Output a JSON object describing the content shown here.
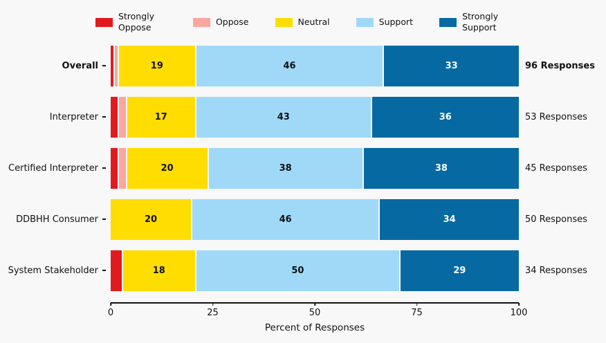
{
  "figure": {
    "background": "#f8f8f8"
  },
  "chart_data": {
    "type": "bar",
    "orientation": "horizontal",
    "stacked": true,
    "title": "",
    "xlabel": "Percent of Responses",
    "xlim": [
      0,
      100
    ],
    "xticks": [
      "0",
      "25",
      "50",
      "75",
      "100"
    ],
    "legend_position": "top",
    "value_label_min": 10,
    "legend": [
      {
        "label": "Strongly Oppose",
        "color": "#e11a1d",
        "text_color": "#ffffff"
      },
      {
        "label": "Oppose",
        "color": "#fca6a0",
        "text_color": "#111111"
      },
      {
        "label": "Neutral",
        "color": "#ffdd00",
        "text_color": "#111111"
      },
      {
        "label": "Support",
        "color": "#a0d9f8",
        "text_color": "#111111"
      },
      {
        "label": "Strongly Support",
        "color": "#0769a2",
        "text_color": "#ffffff"
      }
    ],
    "rows": [
      {
        "category": "Overall",
        "responses": "96 Responses",
        "bold": true,
        "values": [
          1,
          1,
          19,
          46,
          33
        ]
      },
      {
        "category": "Interpreter",
        "responses": "53 Responses",
        "bold": false,
        "values": [
          2,
          2,
          17,
          43,
          36
        ]
      },
      {
        "category": "Certified Interpreter",
        "responses": "45 Responses",
        "bold": false,
        "values": [
          2,
          2,
          20,
          38,
          38
        ]
      },
      {
        "category": "DDBHH Consumer",
        "responses": "50 Responses",
        "bold": false,
        "values": [
          0,
          0,
          20,
          46,
          34
        ]
      },
      {
        "category": "System Stakeholder",
        "responses": "34 Responses",
        "bold": false,
        "values": [
          3,
          0,
          18,
          50,
          29
        ]
      }
    ]
  }
}
